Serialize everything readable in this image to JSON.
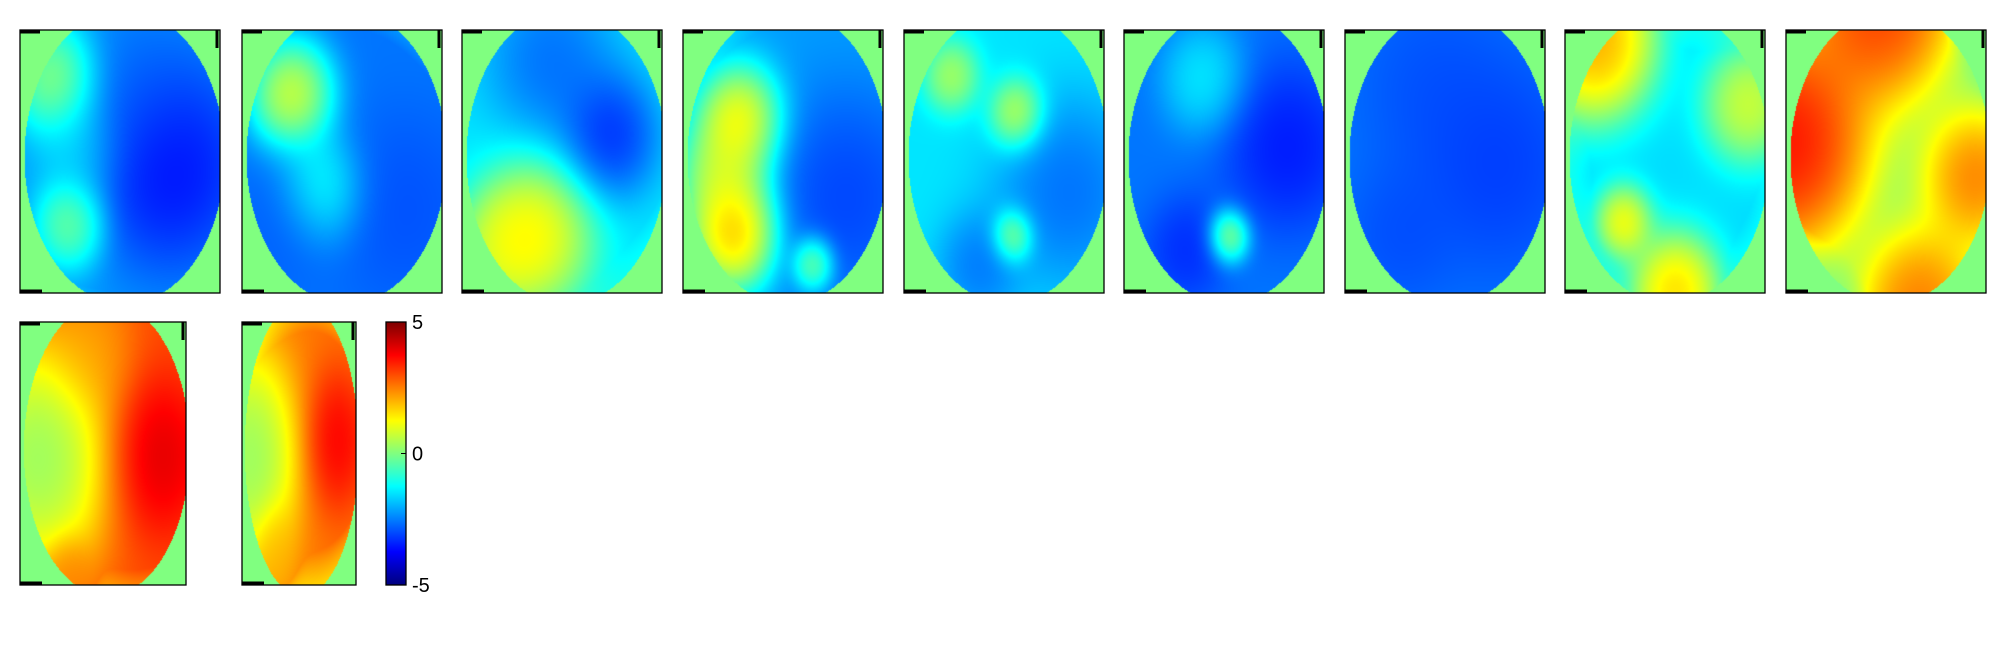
{
  "chart_data": {
    "type": "heatmap",
    "colormap": "jet",
    "background_value": 0,
    "colorbar": {
      "min": -5,
      "max": 5,
      "ticks": [
        5,
        0,
        -5
      ],
      "tick_labels": [
        "5",
        "0",
        "-5"
      ]
    },
    "panels": [
      {
        "field": [
          {
            "v": -2.2,
            "cx": 0.5,
            "cy": 0.45,
            "r": 0.5
          },
          {
            "v": -4.8,
            "cx": 0.7,
            "cy": 0.5,
            "r": 0.22
          },
          {
            "v": -2.8,
            "cx": 0.55,
            "cy": 0.25,
            "r": 0.2
          },
          {
            "v": 1.8,
            "cx": 0.2,
            "cy": 0.2,
            "r": 0.12
          },
          {
            "v": 1.2,
            "cx": 0.26,
            "cy": 0.72,
            "r": 0.1
          },
          {
            "v": -1.0,
            "cx": 0.3,
            "cy": 0.45,
            "r": 0.12
          }
        ]
      },
      {
        "field": [
          {
            "v": -2.6,
            "cx": 0.5,
            "cy": 0.5,
            "r": 0.5
          },
          {
            "v": 3.0,
            "cx": 0.26,
            "cy": 0.26,
            "r": 0.12
          },
          {
            "v": 0.5,
            "cx": 0.4,
            "cy": 0.6,
            "r": 0.12
          },
          {
            "v": -3.2,
            "cx": 0.75,
            "cy": 0.65,
            "r": 0.2
          },
          {
            "v": -3.0,
            "cx": 0.25,
            "cy": 0.7,
            "r": 0.15
          }
        ]
      },
      {
        "field": [
          {
            "v": -1.5,
            "cx": 0.5,
            "cy": 0.4,
            "r": 0.5
          },
          {
            "v": -4.6,
            "cx": 0.72,
            "cy": 0.4,
            "r": 0.14
          },
          {
            "v": -3.5,
            "cx": 0.45,
            "cy": 0.15,
            "r": 0.18
          },
          {
            "v": 3.0,
            "cx": 0.38,
            "cy": 0.74,
            "r": 0.16
          },
          {
            "v": 1.8,
            "cx": 0.22,
            "cy": 0.8,
            "r": 0.12
          }
        ]
      },
      {
        "field": [
          {
            "v": -2.2,
            "cx": 0.65,
            "cy": 0.45,
            "r": 0.5
          },
          {
            "v": -3.8,
            "cx": 0.78,
            "cy": 0.6,
            "r": 0.22
          },
          {
            "v": 3.5,
            "cx": 0.3,
            "cy": 0.35,
            "r": 0.12
          },
          {
            "v": 4.0,
            "cx": 0.28,
            "cy": 0.75,
            "r": 0.12
          },
          {
            "v": 2.0,
            "cx": 0.22,
            "cy": 0.55,
            "r": 0.12
          },
          {
            "v": 1.6,
            "cx": 0.65,
            "cy": 0.88,
            "r": 0.06
          }
        ]
      },
      {
        "field": [
          {
            "v": -1.5,
            "cx": 0.5,
            "cy": 0.5,
            "r": 0.55
          },
          {
            "v": -3.5,
            "cx": 0.78,
            "cy": 0.6,
            "r": 0.2
          },
          {
            "v": -3.2,
            "cx": 0.38,
            "cy": 0.88,
            "r": 0.12
          },
          {
            "v": 2.5,
            "cx": 0.56,
            "cy": 0.32,
            "r": 0.08
          },
          {
            "v": 2.2,
            "cx": 0.54,
            "cy": 0.78,
            "r": 0.06
          },
          {
            "v": 1.5,
            "cx": 0.24,
            "cy": 0.18,
            "r": 0.08
          }
        ]
      },
      {
        "field": [
          {
            "v": -2.6,
            "cx": 0.5,
            "cy": 0.5,
            "r": 0.55
          },
          {
            "v": -4.2,
            "cx": 0.78,
            "cy": 0.45,
            "r": 0.18
          },
          {
            "v": -3.8,
            "cx": 0.32,
            "cy": 0.82,
            "r": 0.12
          },
          {
            "v": 2.5,
            "cx": 0.52,
            "cy": 0.78,
            "r": 0.06
          },
          {
            "v": -0.6,
            "cx": 0.4,
            "cy": 0.2,
            "r": 0.12
          }
        ]
      },
      {
        "field": [
          {
            "v": -2.6,
            "cx": 0.55,
            "cy": 0.45,
            "r": 0.5
          },
          {
            "v": -3.6,
            "cx": 0.72,
            "cy": 0.5,
            "r": 0.22
          },
          {
            "v": -3.2,
            "cx": 0.45,
            "cy": 0.25,
            "r": 0.2
          },
          {
            "v": -3.2,
            "cx": 0.3,
            "cy": 0.75,
            "r": 0.15
          }
        ]
      },
      {
        "field": [
          {
            "v": -1.6,
            "cx": 0.55,
            "cy": 0.5,
            "r": 0.4
          },
          {
            "v": 3.2,
            "cx": 0.2,
            "cy": 0.1,
            "r": 0.15
          },
          {
            "v": 2.8,
            "cx": 0.3,
            "cy": 0.72,
            "r": 0.08
          },
          {
            "v": 3.0,
            "cx": 0.55,
            "cy": 0.95,
            "r": 0.12
          },
          {
            "v": 2.0,
            "cx": 0.88,
            "cy": 0.3,
            "r": 0.12
          }
        ]
      },
      {
        "field": [
          {
            "v": -0.6,
            "cx": 0.58,
            "cy": 0.5,
            "r": 0.35
          },
          {
            "v": 5.0,
            "cx": 0.18,
            "cy": 0.45,
            "r": 0.2
          },
          {
            "v": 4.2,
            "cx": 0.5,
            "cy": 0.06,
            "r": 0.18
          },
          {
            "v": 4.2,
            "cx": 0.88,
            "cy": 0.55,
            "r": 0.15
          },
          {
            "v": 3.5,
            "cx": 0.65,
            "cy": 0.95,
            "r": 0.15
          }
        ]
      },
      {
        "field": [
          {
            "v": 3.0,
            "cx": 0.7,
            "cy": 0.45,
            "r": 0.45
          },
          {
            "v": 5.0,
            "cx": 0.8,
            "cy": 0.5,
            "r": 0.17
          },
          {
            "v": -1.0,
            "cx": 0.25,
            "cy": 0.5,
            "r": 0.22
          },
          {
            "v": 2.0,
            "cx": 0.45,
            "cy": 0.12,
            "r": 0.14
          },
          {
            "v": 2.5,
            "cx": 0.3,
            "cy": 0.95,
            "r": 0.08
          }
        ]
      },
      {
        "field": [
          {
            "v": 2.6,
            "cx": 0.6,
            "cy": 0.45,
            "r": 0.4
          },
          {
            "v": 4.6,
            "cx": 0.8,
            "cy": 0.45,
            "r": 0.15
          },
          {
            "v": -0.8,
            "cx": 0.2,
            "cy": 0.5,
            "r": 0.2
          },
          {
            "v": 2.0,
            "cx": 0.3,
            "cy": 0.85,
            "r": 0.1
          }
        ]
      }
    ]
  }
}
